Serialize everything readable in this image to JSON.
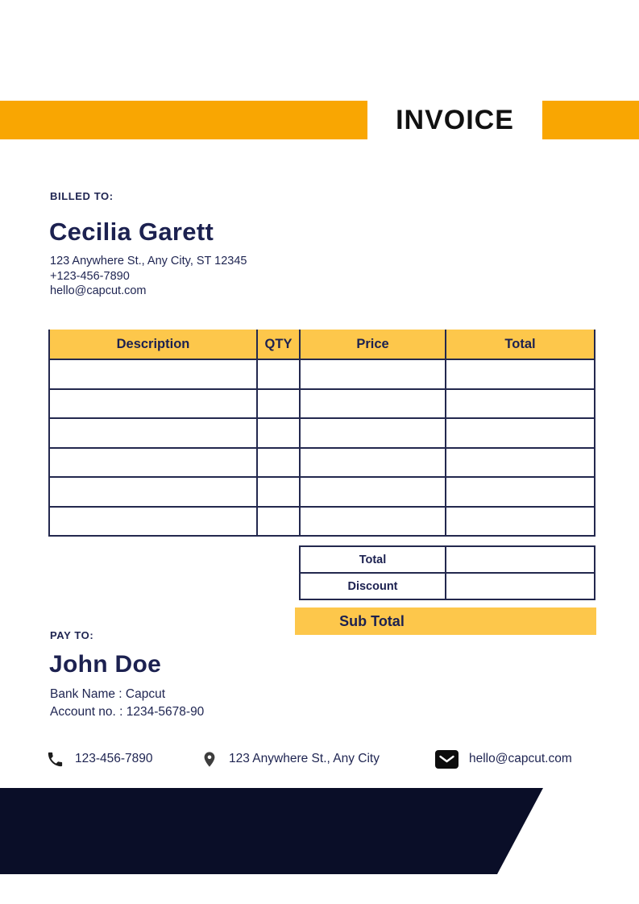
{
  "title": "INVOICE",
  "colors": {
    "accent_orange": "#F9A602",
    "accent_yellow": "#FDC74B",
    "text_navy": "#1E2451",
    "table_border_navy": "#23284E",
    "footer_bar_navy": "#0A0E28",
    "title_black": "#111111"
  },
  "billed_to": {
    "label": "BILLED TO:",
    "name": "Cecilia Garett",
    "address": "123 Anywhere St., Any City, ST 12345",
    "phone": "+123-456-7890",
    "email": "hello@capcut.com"
  },
  "items_table": {
    "headers": [
      "Description",
      "QTY",
      "Price",
      "Total"
    ],
    "rows": [
      [
        "",
        "",
        "",
        ""
      ],
      [
        "",
        "",
        "",
        ""
      ],
      [
        "",
        "",
        "",
        ""
      ],
      [
        "",
        "",
        "",
        ""
      ],
      [
        "",
        "",
        "",
        ""
      ],
      [
        "",
        "",
        "",
        ""
      ]
    ],
    "summary": {
      "total_label": "Total",
      "total_value": "",
      "discount_label": "Discount",
      "discount_value": "",
      "subtotal_label": "Sub Total"
    }
  },
  "pay_to": {
    "label": "PAY TO:",
    "name": "John Doe",
    "bank": "Bank Name : Capcut",
    "account": "Account no. : 1234-5678-90"
  },
  "footer_contacts": {
    "phone_icon": "phone-icon",
    "phone": "123-456-7890",
    "address_icon": "location-pin-icon",
    "address": "123 Anywhere St., Any City",
    "email_icon": "envelope-icon",
    "email": "hello@capcut.com"
  }
}
